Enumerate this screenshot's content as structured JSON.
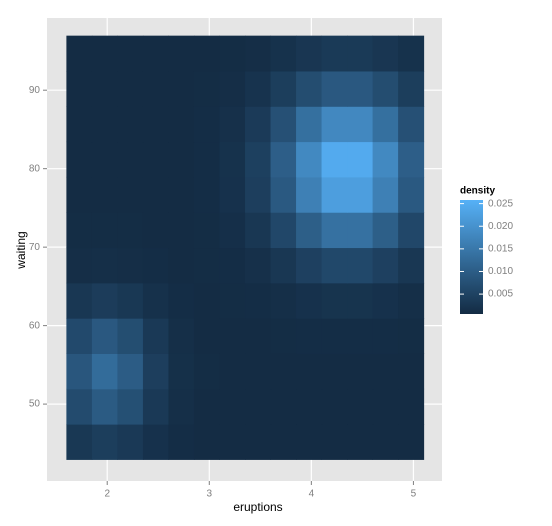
{
  "chart_data": {
    "type": "heatmap",
    "x_label": "eruptions",
    "y_label": "waiting",
    "legend_title": "density",
    "legend_position": "right",
    "grid": true,
    "x": [
      1.725,
      1.975,
      2.225,
      2.475,
      2.725,
      2.975,
      3.225,
      3.475,
      3.725,
      3.975,
      4.225,
      4.475,
      4.725,
      4.975
    ],
    "y": [
      45.2,
      49.7,
      54.2,
      58.7,
      63.2,
      67.7,
      72.2,
      76.7,
      81.2,
      85.7,
      90.2,
      94.7
    ],
    "z": [
      [
        0.003,
        0.0041,
        0.0033,
        0.0018,
        0.001,
        0.0008,
        0.0008,
        0.0008,
        0.0008,
        0.0008,
        0.0008,
        0.0008,
        0.0008,
        0.0008
      ],
      [
        0.0066,
        0.0096,
        0.0075,
        0.0033,
        0.0013,
        0.0008,
        0.0008,
        0.0008,
        0.0008,
        0.0008,
        0.0008,
        0.0008,
        0.0008,
        0.0008
      ],
      [
        0.0087,
        0.0128,
        0.0099,
        0.0042,
        0.0015,
        0.0009,
        0.0008,
        0.0008,
        0.0008,
        0.0008,
        0.0008,
        0.0008,
        0.0008,
        0.0008
      ],
      [
        0.0063,
        0.0091,
        0.0071,
        0.0032,
        0.0013,
        0.0008,
        0.0008,
        0.0008,
        0.0009,
        0.001,
        0.001,
        0.001,
        0.001,
        0.0009
      ],
      [
        0.0028,
        0.0038,
        0.003,
        0.0017,
        0.001,
        0.0008,
        0.0009,
        0.001,
        0.0013,
        0.0018,
        0.0022,
        0.0022,
        0.0018,
        0.0013
      ],
      [
        0.0012,
        0.0013,
        0.0012,
        0.001,
        0.0008,
        0.0009,
        0.001,
        0.0016,
        0.0028,
        0.0046,
        0.006,
        0.006,
        0.0046,
        0.0028
      ],
      [
        0.0009,
        0.0009,
        0.0009,
        0.0008,
        0.0008,
        0.0009,
        0.0014,
        0.0028,
        0.0059,
        0.0103,
        0.0137,
        0.0137,
        0.0103,
        0.0059
      ],
      [
        0.0008,
        0.0008,
        0.0008,
        0.0008,
        0.0008,
        0.001,
        0.0018,
        0.0042,
        0.0093,
        0.0166,
        0.0223,
        0.0223,
        0.0166,
        0.0093
      ],
      [
        0.0008,
        0.0008,
        0.0008,
        0.0008,
        0.0008,
        0.001,
        0.0019,
        0.0045,
        0.0102,
        0.0182,
        0.0245,
        0.0245,
        0.0182,
        0.0102
      ],
      [
        0.0008,
        0.0008,
        0.0008,
        0.0008,
        0.0008,
        0.001,
        0.0016,
        0.0035,
        0.0076,
        0.0135,
        0.0181,
        0.0181,
        0.0135,
        0.0076
      ],
      [
        0.0008,
        0.0008,
        0.0008,
        0.0008,
        0.0008,
        0.0009,
        0.0012,
        0.0021,
        0.0041,
        0.0069,
        0.0091,
        0.0091,
        0.0069,
        0.0041
      ],
      [
        0.0008,
        0.0008,
        0.0008,
        0.0008,
        0.0008,
        0.0008,
        0.0009,
        0.0012,
        0.0019,
        0.0027,
        0.0034,
        0.0034,
        0.0027,
        0.0019
      ]
    ],
    "xlim": [
      1.41,
      5.28
    ],
    "ylim": [
      40.2,
      99.2
    ],
    "xticks": [
      2,
      3,
      4,
      5
    ],
    "yticks": [
      50,
      60,
      70,
      80,
      90
    ],
    "zlim": [
      0.0006,
      0.0258
    ],
    "zticks": [
      0.005,
      {
        "value": 0.01,
        "label": "0.010"
      },
      0.015,
      {
        "value": 0.02,
        "label": "0.020"
      },
      0.025
    ],
    "colors": {
      "low": "#132B43",
      "high": "#56B1F7"
    }
  }
}
